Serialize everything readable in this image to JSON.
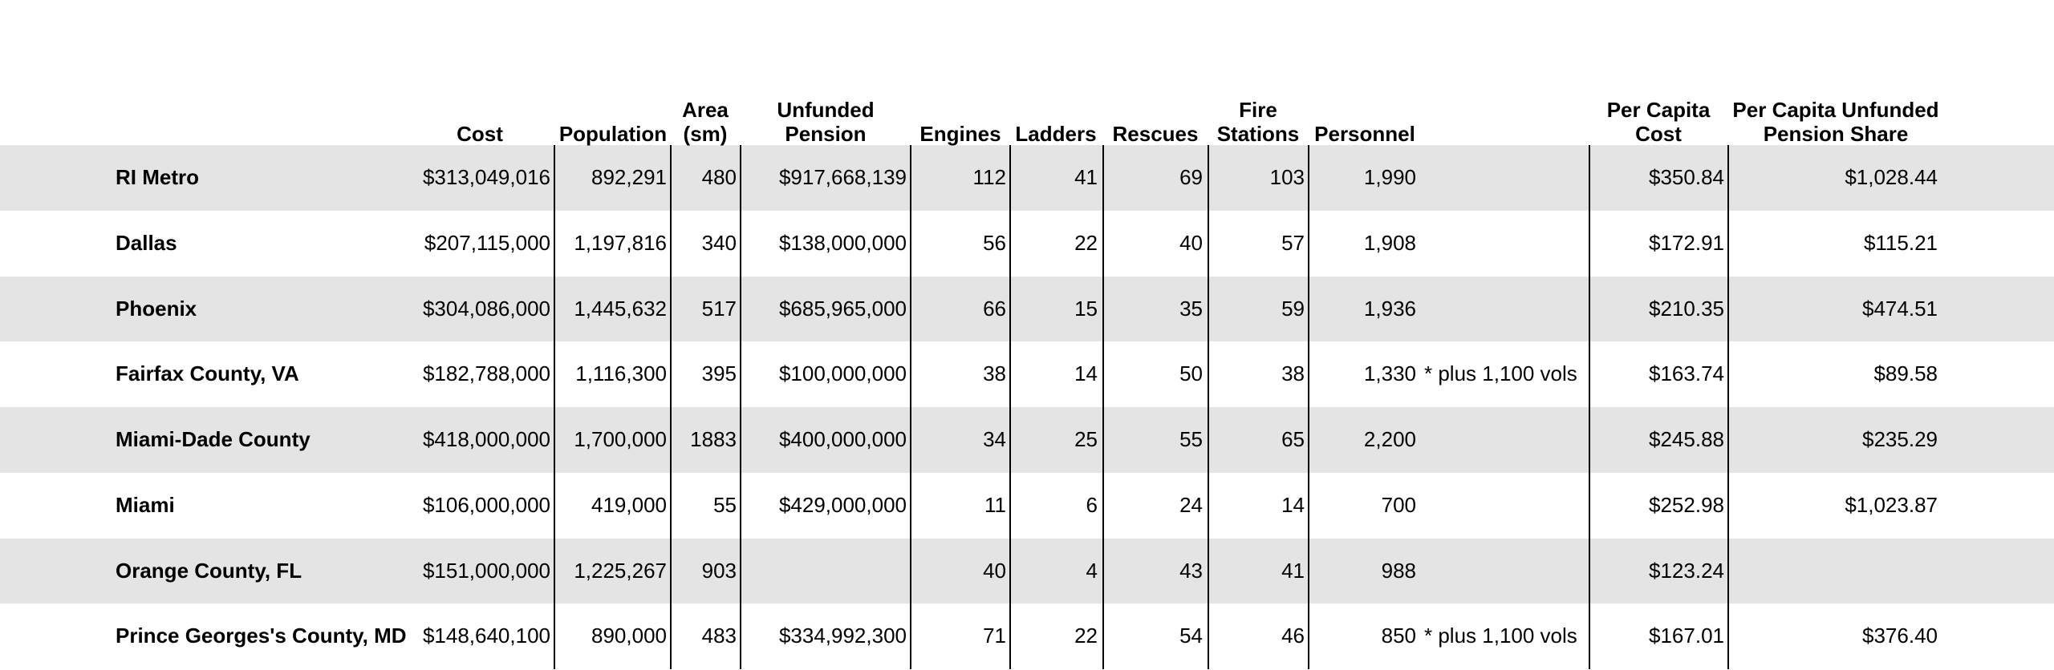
{
  "table": {
    "headers": {
      "cost": [
        "Cost"
      ],
      "population": [
        "Population"
      ],
      "area": [
        "Area",
        "(sm)"
      ],
      "unfunded": [
        "Unfunded",
        "Pension"
      ],
      "engines": [
        "Engines"
      ],
      "ladders": [
        "Ladders"
      ],
      "rescues": [
        "Rescues"
      ],
      "stations": [
        "Fire",
        "Stations"
      ],
      "personnel": [
        "Personnel"
      ],
      "pcc": [
        "Per Capita",
        "Cost"
      ],
      "pcu": [
        "Per Capita Unfunded",
        "Pension Share"
      ]
    },
    "rows": [
      {
        "name": "RI Metro",
        "cost": "$313,049,016",
        "population": "892,291",
        "area": "480",
        "unfunded": "$917,668,139",
        "engines": "112",
        "ladders": "41",
        "rescues": "69",
        "stations": "103",
        "personnel": "1,990",
        "pcc": "$350.84",
        "pcu": "$1,028.44"
      },
      {
        "name": "Dallas",
        "cost": "$207,115,000",
        "population": "1,197,816",
        "area": "340",
        "unfunded": "$138,000,000",
        "engines": "56",
        "ladders": "22",
        "rescues": "40",
        "stations": "57",
        "personnel": "1,908",
        "pcc": "$172.91",
        "pcu": "$115.21"
      },
      {
        "name": "Phoenix",
        "cost": "$304,086,000",
        "population": "1,445,632",
        "area": "517",
        "unfunded": "$685,965,000",
        "engines": "66",
        "ladders": "15",
        "rescues": "35",
        "stations": "59",
        "personnel": "1,936",
        "pcc": "$210.35",
        "pcu": "$474.51"
      },
      {
        "name": "Fairfax County, VA",
        "cost": "$182,788,000",
        "population": "1,116,300",
        "area": "395",
        "unfunded": "$100,000,000",
        "engines": "38",
        "ladders": "14",
        "rescues": "50",
        "stations": "38",
        "personnel": "1,330",
        "note": "* plus 1,100 vols",
        "pcc": "$163.74",
        "pcu": "$89.58"
      },
      {
        "name": "Miami-Dade County",
        "cost": "$418,000,000",
        "population": "1,700,000",
        "area": "1883",
        "unfunded": "$400,000,000",
        "engines": "34",
        "ladders": "25",
        "rescues": "55",
        "stations": "65",
        "personnel": "2,200",
        "pcc": "$245.88",
        "pcu": "$235.29"
      },
      {
        "name": "Miami",
        "cost": "$106,000,000",
        "population": "419,000",
        "area": "55",
        "unfunded": "$429,000,000",
        "engines": "11",
        "ladders": "6",
        "rescues": "24",
        "stations": "14",
        "personnel": "700",
        "pcc": "$252.98",
        "pcu": "$1,023.87"
      },
      {
        "name": "Orange County, FL",
        "cost": "$151,000,000",
        "population": "1,225,267",
        "area": "903",
        "engines": "40",
        "ladders": "4",
        "rescues": "43",
        "stations": "41",
        "personnel": "988",
        "pcc": "$123.24"
      },
      {
        "name": "Prince Georges's County, MD",
        "cost": "$148,640,100",
        "population": "890,000",
        "area": "483",
        "unfunded": "$334,992,300",
        "engines": "71",
        "ladders": "22",
        "rescues": "54",
        "stations": "46",
        "personnel": "850",
        "note": "* plus 1,100 vols",
        "pcc": "$167.01",
        "pcu": "$376.40"
      }
    ]
  }
}
